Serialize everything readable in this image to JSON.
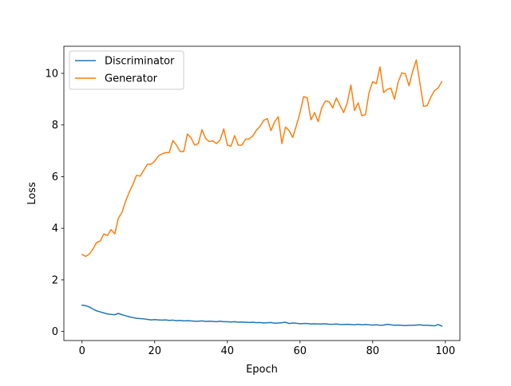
{
  "chart_data": {
    "type": "line",
    "title": "",
    "xlabel": "Epoch",
    "ylabel": "Loss",
    "xlim": [
      -5,
      104
    ],
    "ylim": [
      -0.35,
      11.05
    ],
    "x_ticks": [
      0,
      20,
      40,
      60,
      80,
      100
    ],
    "y_ticks": [
      0,
      2,
      4,
      6,
      8,
      10
    ],
    "grid": false,
    "legend_position": "top-left",
    "series": [
      {
        "name": "Discriminator",
        "color": "#1f77b4",
        "values": [
          1.02,
          1.0,
          0.95,
          0.87,
          0.8,
          0.76,
          0.72,
          0.68,
          0.66,
          0.65,
          0.7,
          0.65,
          0.61,
          0.57,
          0.54,
          0.51,
          0.5,
          0.49,
          0.47,
          0.45,
          0.46,
          0.45,
          0.44,
          0.45,
          0.43,
          0.44,
          0.42,
          0.43,
          0.41,
          0.42,
          0.41,
          0.4,
          0.4,
          0.41,
          0.39,
          0.4,
          0.39,
          0.38,
          0.4,
          0.38,
          0.38,
          0.37,
          0.38,
          0.36,
          0.37,
          0.36,
          0.35,
          0.36,
          0.34,
          0.35,
          0.33,
          0.34,
          0.35,
          0.32,
          0.33,
          0.34,
          0.36,
          0.31,
          0.33,
          0.32,
          0.3,
          0.31,
          0.31,
          0.29,
          0.3,
          0.29,
          0.29,
          0.3,
          0.28,
          0.28,
          0.29,
          0.27,
          0.27,
          0.28,
          0.27,
          0.26,
          0.28,
          0.26,
          0.27,
          0.26,
          0.25,
          0.26,
          0.24,
          0.25,
          0.28,
          0.26,
          0.24,
          0.25,
          0.24,
          0.23,
          0.24,
          0.24,
          0.25,
          0.26,
          0.24,
          0.24,
          0.23,
          0.22,
          0.27,
          0.21
        ]
      },
      {
        "name": "Generator",
        "color": "#ff7f0e",
        "values": [
          2.98,
          2.91,
          3.0,
          3.19,
          3.45,
          3.5,
          3.78,
          3.72,
          3.95,
          3.78,
          4.39,
          4.62,
          5.05,
          5.4,
          5.7,
          6.05,
          6.02,
          6.25,
          6.48,
          6.48,
          6.6,
          6.8,
          6.88,
          6.93,
          6.93,
          7.4,
          7.22,
          6.97,
          6.97,
          7.65,
          7.5,
          7.22,
          7.28,
          7.82,
          7.48,
          7.36,
          7.38,
          7.28,
          7.42,
          7.85,
          7.22,
          7.18,
          7.59,
          7.22,
          7.22,
          7.45,
          7.46,
          7.58,
          7.8,
          7.95,
          8.18,
          8.25,
          7.78,
          8.12,
          8.32,
          7.28,
          7.92,
          7.78,
          7.52,
          7.98,
          8.48,
          9.1,
          9.05,
          8.2,
          8.48,
          8.13,
          8.68,
          8.93,
          8.9,
          8.66,
          9.05,
          8.76,
          8.48,
          8.86,
          9.55,
          8.56,
          8.86,
          8.36,
          8.4,
          9.26,
          9.68,
          9.6,
          10.25,
          9.26,
          9.38,
          9.43,
          9.0,
          9.66,
          10.02,
          9.98,
          9.52,
          10.08,
          10.52,
          9.62,
          8.72,
          8.75,
          9.08,
          9.33,
          9.43,
          9.68
        ]
      }
    ]
  }
}
